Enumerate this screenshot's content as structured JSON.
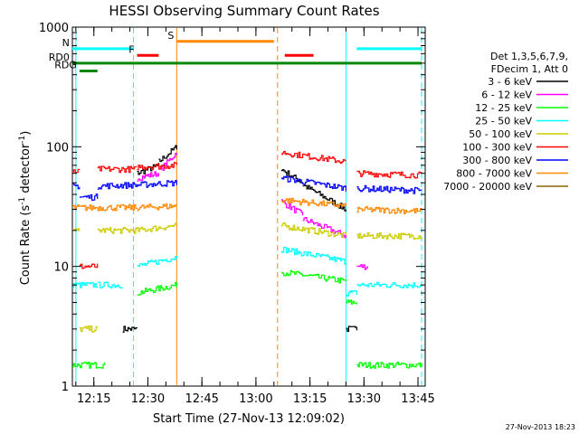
{
  "chart_data": {
    "type": "line",
    "title": "HESSI Observing Summary Count Rates",
    "xlabel": "Start Time (27-Nov-13 12:09:02)",
    "ylabel_main": "Count Rate (s",
    "ylabel_sup1": "-1",
    "ylabel_mid": " detector",
    "ylabel_sup2": "-1",
    "ylabel_end": ")",
    "x_range": [
      "12:09:02",
      "13:47:00"
    ],
    "y_scale": "log",
    "ylim": [
      1,
      1000
    ],
    "x_ticks": [
      "12:15",
      "12:30",
      "12:45",
      "13:00",
      "13:15",
      "13:30",
      "13:45"
    ],
    "y_ticks": [
      "1",
      "10",
      "100",
      "1000"
    ],
    "legend_title": [
      "Det 1,3,5,6,7,9,",
      "FDecim 1, Att 0"
    ],
    "legend_placement": "right",
    "timestamp": "27-Nov-2013 18:23",
    "series": [
      {
        "name": "3 - 6 keV",
        "color": "#000000",
        "segments": [
          {
            "x": [
              "12:23",
              "12:27"
            ],
            "y": [
              3,
              3
            ]
          },
          {
            "x": [
              "12:27",
              "12:33"
            ],
            "y": [
              60,
              70
            ]
          },
          {
            "x": [
              "12:33",
              "12:38"
            ],
            "y": [
              75,
              100
            ]
          },
          {
            "x": [
              "13:07",
              "13:13"
            ],
            "y": [
              65,
              50
            ]
          },
          {
            "x": [
              "13:13",
              "13:25"
            ],
            "y": [
              48,
              30
            ]
          },
          {
            "x": [
              "13:25",
              "13:28"
            ],
            "y": [
              3,
              3
            ]
          }
        ]
      },
      {
        "name": "6 - 12 keV",
        "color": "#ff00ff",
        "segments": [
          {
            "x": [
              "12:27",
              "12:33"
            ],
            "y": [
              55,
              60
            ]
          },
          {
            "x": [
              "12:33",
              "12:38"
            ],
            "y": [
              62,
              90
            ]
          },
          {
            "x": [
              "13:07",
              "13:13"
            ],
            "y": [
              35,
              27
            ]
          },
          {
            "x": [
              "13:13",
              "13:25"
            ],
            "y": [
              25,
              18
            ]
          },
          {
            "x": [
              "13:28",
              "13:31"
            ],
            "y": [
              10,
              10
            ]
          }
        ]
      },
      {
        "name": "12 - 25 keV",
        "color": "#00ff00",
        "segments": [
          {
            "x": [
              "12:09",
              "12:16"
            ],
            "y": [
              1.5,
              1.5
            ]
          },
          {
            "x": [
              "12:16",
              "12:18"
            ],
            "y": [
              1.5,
              1.5
            ]
          },
          {
            "x": [
              "12:27",
              "12:38"
            ],
            "y": [
              6,
              7
            ]
          },
          {
            "x": [
              "13:07",
              "13:25"
            ],
            "y": [
              9,
              7.5
            ]
          },
          {
            "x": [
              "13:25",
              "13:28"
            ],
            "y": [
              5,
              5
            ]
          },
          {
            "x": [
              "13:28",
              "13:46"
            ],
            "y": [
              1.5,
              1.5
            ]
          }
        ]
      },
      {
        "name": "25 - 50 keV",
        "color": "#00ffff",
        "segments": [
          {
            "x": [
              "12:09",
              "12:16"
            ],
            "y": [
              7,
              7
            ]
          },
          {
            "x": [
              "12:16",
              "12:23"
            ],
            "y": [
              7,
              7
            ]
          },
          {
            "x": [
              "12:27",
              "12:38"
            ],
            "y": [
              10,
              12
            ]
          },
          {
            "x": [
              "13:07",
              "13:25"
            ],
            "y": [
              14,
              11
            ]
          },
          {
            "x": [
              "13:25",
              "13:28"
            ],
            "y": [
              6,
              6
            ]
          },
          {
            "x": [
              "13:28",
              "13:46"
            ],
            "y": [
              7,
              7
            ]
          }
        ]
      },
      {
        "name": "50 - 100 keV",
        "color": "#cccc00",
        "segments": [
          {
            "x": [
              "12:09",
              "12:11"
            ],
            "y": [
              20,
              20
            ]
          },
          {
            "x": [
              "12:11",
              "12:16"
            ],
            "y": [
              3,
              3
            ]
          },
          {
            "x": [
              "12:16",
              "12:27"
            ],
            "y": [
              20,
              20
            ]
          },
          {
            "x": [
              "12:27",
              "12:38"
            ],
            "y": [
              20,
              22
            ]
          },
          {
            "x": [
              "13:07",
              "13:25"
            ],
            "y": [
              22,
              18
            ]
          },
          {
            "x": [
              "13:28",
              "13:46"
            ],
            "y": [
              18,
              18
            ]
          }
        ]
      },
      {
        "name": "100 - 300 keV",
        "color": "#ff0000",
        "segments": [
          {
            "x": [
              "12:09",
              "12:11"
            ],
            "y": [
              63,
              63
            ]
          },
          {
            "x": [
              "12:11",
              "12:16"
            ],
            "y": [
              10,
              10
            ]
          },
          {
            "x": [
              "12:16",
              "12:27"
            ],
            "y": [
              65,
              65
            ]
          },
          {
            "x": [
              "12:27",
              "12:38"
            ],
            "y": [
              68,
              70
            ]
          },
          {
            "x": [
              "13:07",
              "13:25"
            ],
            "y": [
              90,
              75
            ]
          },
          {
            "x": [
              "13:28",
              "13:46"
            ],
            "y": [
              60,
              58
            ]
          }
        ]
      },
      {
        "name": "300 - 800 keV",
        "color": "#0000ff",
        "segments": [
          {
            "x": [
              "12:09",
              "12:11"
            ],
            "y": [
              47,
              47
            ]
          },
          {
            "x": [
              "12:11",
              "12:16"
            ],
            "y": [
              38,
              38
            ]
          },
          {
            "x": [
              "12:16",
              "12:27"
            ],
            "y": [
              47,
              48
            ]
          },
          {
            "x": [
              "12:27",
              "12:38"
            ],
            "y": [
              48,
              50
            ]
          },
          {
            "x": [
              "13:07",
              "13:25"
            ],
            "y": [
              55,
              45
            ]
          },
          {
            "x": [
              "13:28",
              "13:46"
            ],
            "y": [
              45,
              43
            ]
          }
        ]
      },
      {
        "name": "800 - 7000 keV",
        "color": "#ff8800",
        "segments": [
          {
            "x": [
              "12:09",
              "12:27"
            ],
            "y": [
              31,
              31
            ]
          },
          {
            "x": [
              "12:27",
              "12:38"
            ],
            "y": [
              31,
              32
            ]
          },
          {
            "x": [
              "13:07",
              "13:25"
            ],
            "y": [
              36,
              32
            ]
          },
          {
            "x": [
              "13:28",
              "13:46"
            ],
            "y": [
              30,
              29
            ]
          }
        ]
      },
      {
        "name": "7000 - 20000 keV",
        "color": "#886600",
        "segments": []
      }
    ],
    "flag_bars": [
      {
        "label": "N",
        "color": "#00ffff",
        "segments": [
          {
            "x": [
              "12:09",
              "12:26"
            ],
            "y": 660
          },
          {
            "x": [
              "13:28",
              "13:46"
            ],
            "y": 660
          }
        ]
      },
      {
        "label": "F",
        "color": "#ff0000",
        "segments": [
          {
            "x": [
              "12:27",
              "12:33"
            ],
            "y": 580
          },
          {
            "x": [
              "13:08",
              "13:16"
            ],
            "y": 580
          }
        ]
      },
      {
        "label": "S",
        "color": "#ff8800",
        "segments": [
          {
            "x": [
              "12:38",
              "13:05"
            ],
            "y": 760
          }
        ]
      },
      {
        "label": "RD0",
        "color": "#008800",
        "segments": [
          {
            "x": [
              "12:09",
              "13:46"
            ],
            "y": 500
          }
        ]
      },
      {
        "label": "RDG",
        "color": "#008800",
        "segments": [
          {
            "x": [
              "12:11",
              "12:16"
            ],
            "y": 430
          }
        ]
      }
    ],
    "vlines": [
      {
        "x": "12:10",
        "color": "#00ffff",
        "dashed": false
      },
      {
        "x": "12:26",
        "color": "#00ffff",
        "dashed": true
      },
      {
        "x": "12:38",
        "color": "#ff8800",
        "dashed": false
      },
      {
        "x": "13:06",
        "color": "#ff8800",
        "dashed": true
      },
      {
        "x": "13:25",
        "color": "#00ffff",
        "dashed": false
      },
      {
        "x": "13:46",
        "color": "#00ffff",
        "dashed": true
      }
    ]
  }
}
